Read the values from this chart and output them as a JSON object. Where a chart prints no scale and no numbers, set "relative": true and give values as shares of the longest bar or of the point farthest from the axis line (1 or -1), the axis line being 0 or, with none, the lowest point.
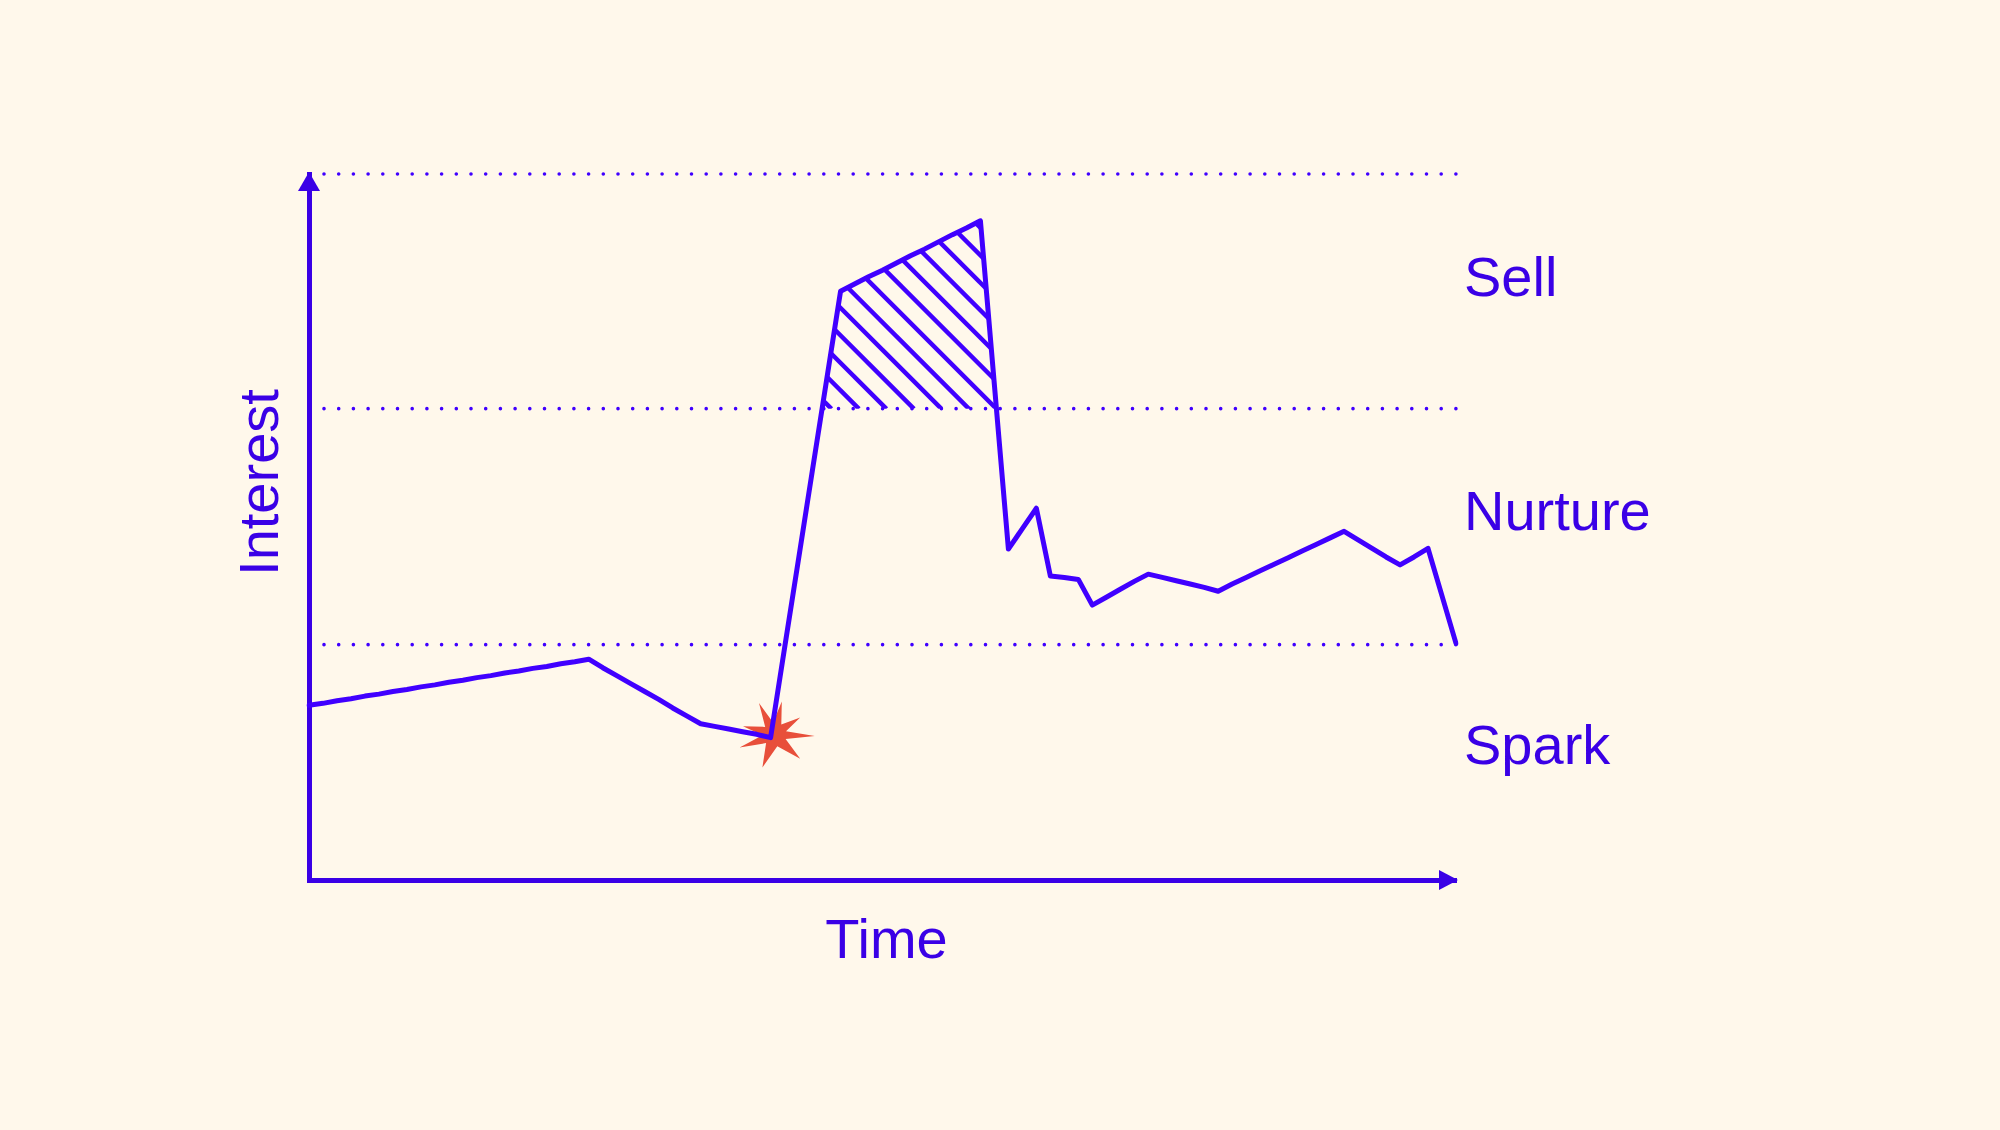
{
  "chart_data": {
    "type": "line",
    "xlabel": "Time",
    "ylabel": "Interest",
    "relative": true,
    "categories": [
      null,
      null,
      null,
      null,
      null,
      null,
      null,
      null,
      null,
      null,
      null,
      null,
      null,
      null,
      null,
      null,
      null,
      null,
      null,
      null,
      null,
      null,
      null,
      null,
      null,
      null,
      null,
      null,
      null,
      null,
      null,
      null,
      null,
      null,
      null,
      null,
      null,
      null,
      null,
      null,
      null,
      null,
      null,
      null,
      null,
      null,
      null,
      null,
      null,
      null,
      null,
      null,
      null,
      null,
      null,
      null,
      null,
      null,
      null,
      null,
      null,
      null,
      null,
      null,
      null,
      null,
      null,
      null,
      null,
      null,
      null,
      null,
      null,
      null,
      null,
      null,
      null,
      null,
      null,
      null,
      null,
      null,
      null
    ],
    "series": [
      {
        "color": "#4000ff",
        "values": [
          0.265,
          0.268,
          0.272,
          0.275,
          0.279,
          0.282,
          0.286,
          0.289,
          0.293,
          0.296,
          0.3,
          0.303,
          0.307,
          0.31,
          0.314,
          0.317,
          0.321,
          0.324,
          0.328,
          0.331,
          0.335,
          0.322,
          0.31,
          0.298,
          0.286,
          0.274,
          0.261,
          0.249,
          0.237,
          0.233,
          0.229,
          0.225,
          0.221,
          0.216,
          0.352,
          0.487,
          0.623,
          0.758,
          0.893,
          0.904,
          0.915,
          0.925,
          0.936,
          0.947,
          0.957,
          0.968,
          0.979,
          0.989,
          1,
          0.751,
          0.502,
          0.533,
          0.564,
          0.461,
          0.459,
          0.456,
          0.417,
          0.429,
          0.441,
          0.453,
          0.464,
          0.459,
          0.454,
          0.449,
          0.444,
          0.438,
          0.449,
          0.459,
          0.469,
          0.479,
          0.489,
          0.499,
          0.509,
          0.519,
          0.529,
          0.516,
          0.503,
          0.49,
          0.478,
          0.49,
          0.503,
          0.431,
          0.359
        ]
      }
    ],
    "ref_lines": [
      {
        "axis": "y",
        "value": 1.071,
        "color": "#4000ff",
        "line_style": "dotted"
      },
      {
        "axis": "y",
        "value": 0.715,
        "color": "#4000ff",
        "line_style": "dotted"
      },
      {
        "axis": "y",
        "value": 0.357,
        "color": "#4000ff",
        "line_style": "dotted"
      }
    ],
    "annotations": [
      "Sell",
      "Nurture",
      "Spark"
    ]
  }
}
